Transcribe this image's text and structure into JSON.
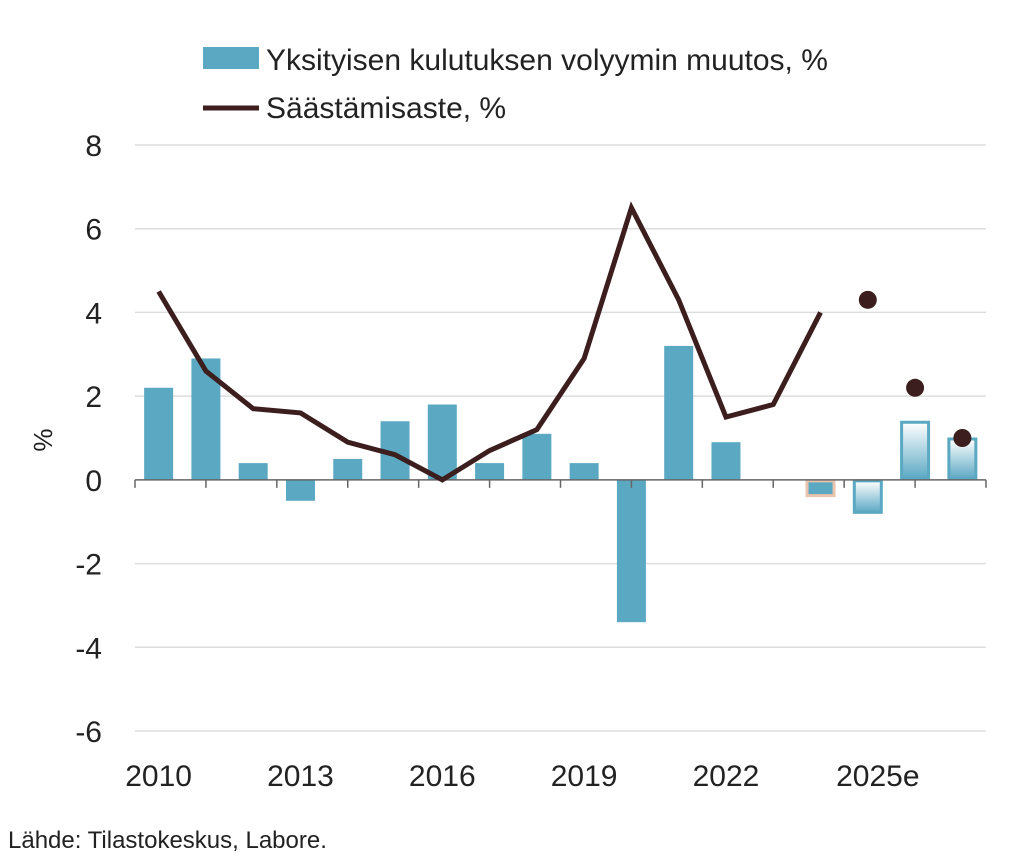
{
  "chart_data": {
    "type": "bar+line",
    "categories": [
      "2010",
      "2011",
      "2012",
      "2013",
      "2014",
      "2015",
      "2016",
      "2017",
      "2018",
      "2019",
      "2020",
      "2021",
      "2022",
      "2023",
      "2024",
      "2025",
      "2026",
      "2027"
    ],
    "x_tick_labels": [
      "2010",
      "2013",
      "2016",
      "2019",
      "2022",
      "2025e"
    ],
    "series": [
      {
        "name": "Yksityisen kulutuksen volyymin muutos, %",
        "type": "bar",
        "values": [
          2.2,
          2.9,
          0.4,
          -0.5,
          0.5,
          1.4,
          1.8,
          0.4,
          1.1,
          0.4,
          -3.4,
          3.2,
          0.9,
          0,
          -0.4,
          -0.8,
          1.4,
          1.0
        ],
        "forecast_from": "2025",
        "highlighted": "2024"
      },
      {
        "name": "Säästämisaste, %",
        "type": "line",
        "values": [
          4.5,
          2.6,
          1.7,
          1.6,
          0.9,
          0.6,
          0.0,
          0.7,
          1.2,
          2.9,
          6.5,
          4.3,
          1.5,
          1.8,
          4.0,
          4.3,
          2.2,
          1.0
        ],
        "forecast_from": "2025"
      }
    ],
    "ylabel": "%",
    "ylim": [
      -6,
      8
    ],
    "yticks": [
      8,
      6,
      4,
      2,
      0,
      -2,
      -4,
      -6
    ],
    "grid": true,
    "legend": "top",
    "colors": {
      "bar": "#5ba8c3",
      "line": "#3d1e1e",
      "grid": "#dddddd",
      "highlight_border": "#e8c4ad"
    }
  },
  "source": "Lähde: Tilastokeskus, Labore."
}
